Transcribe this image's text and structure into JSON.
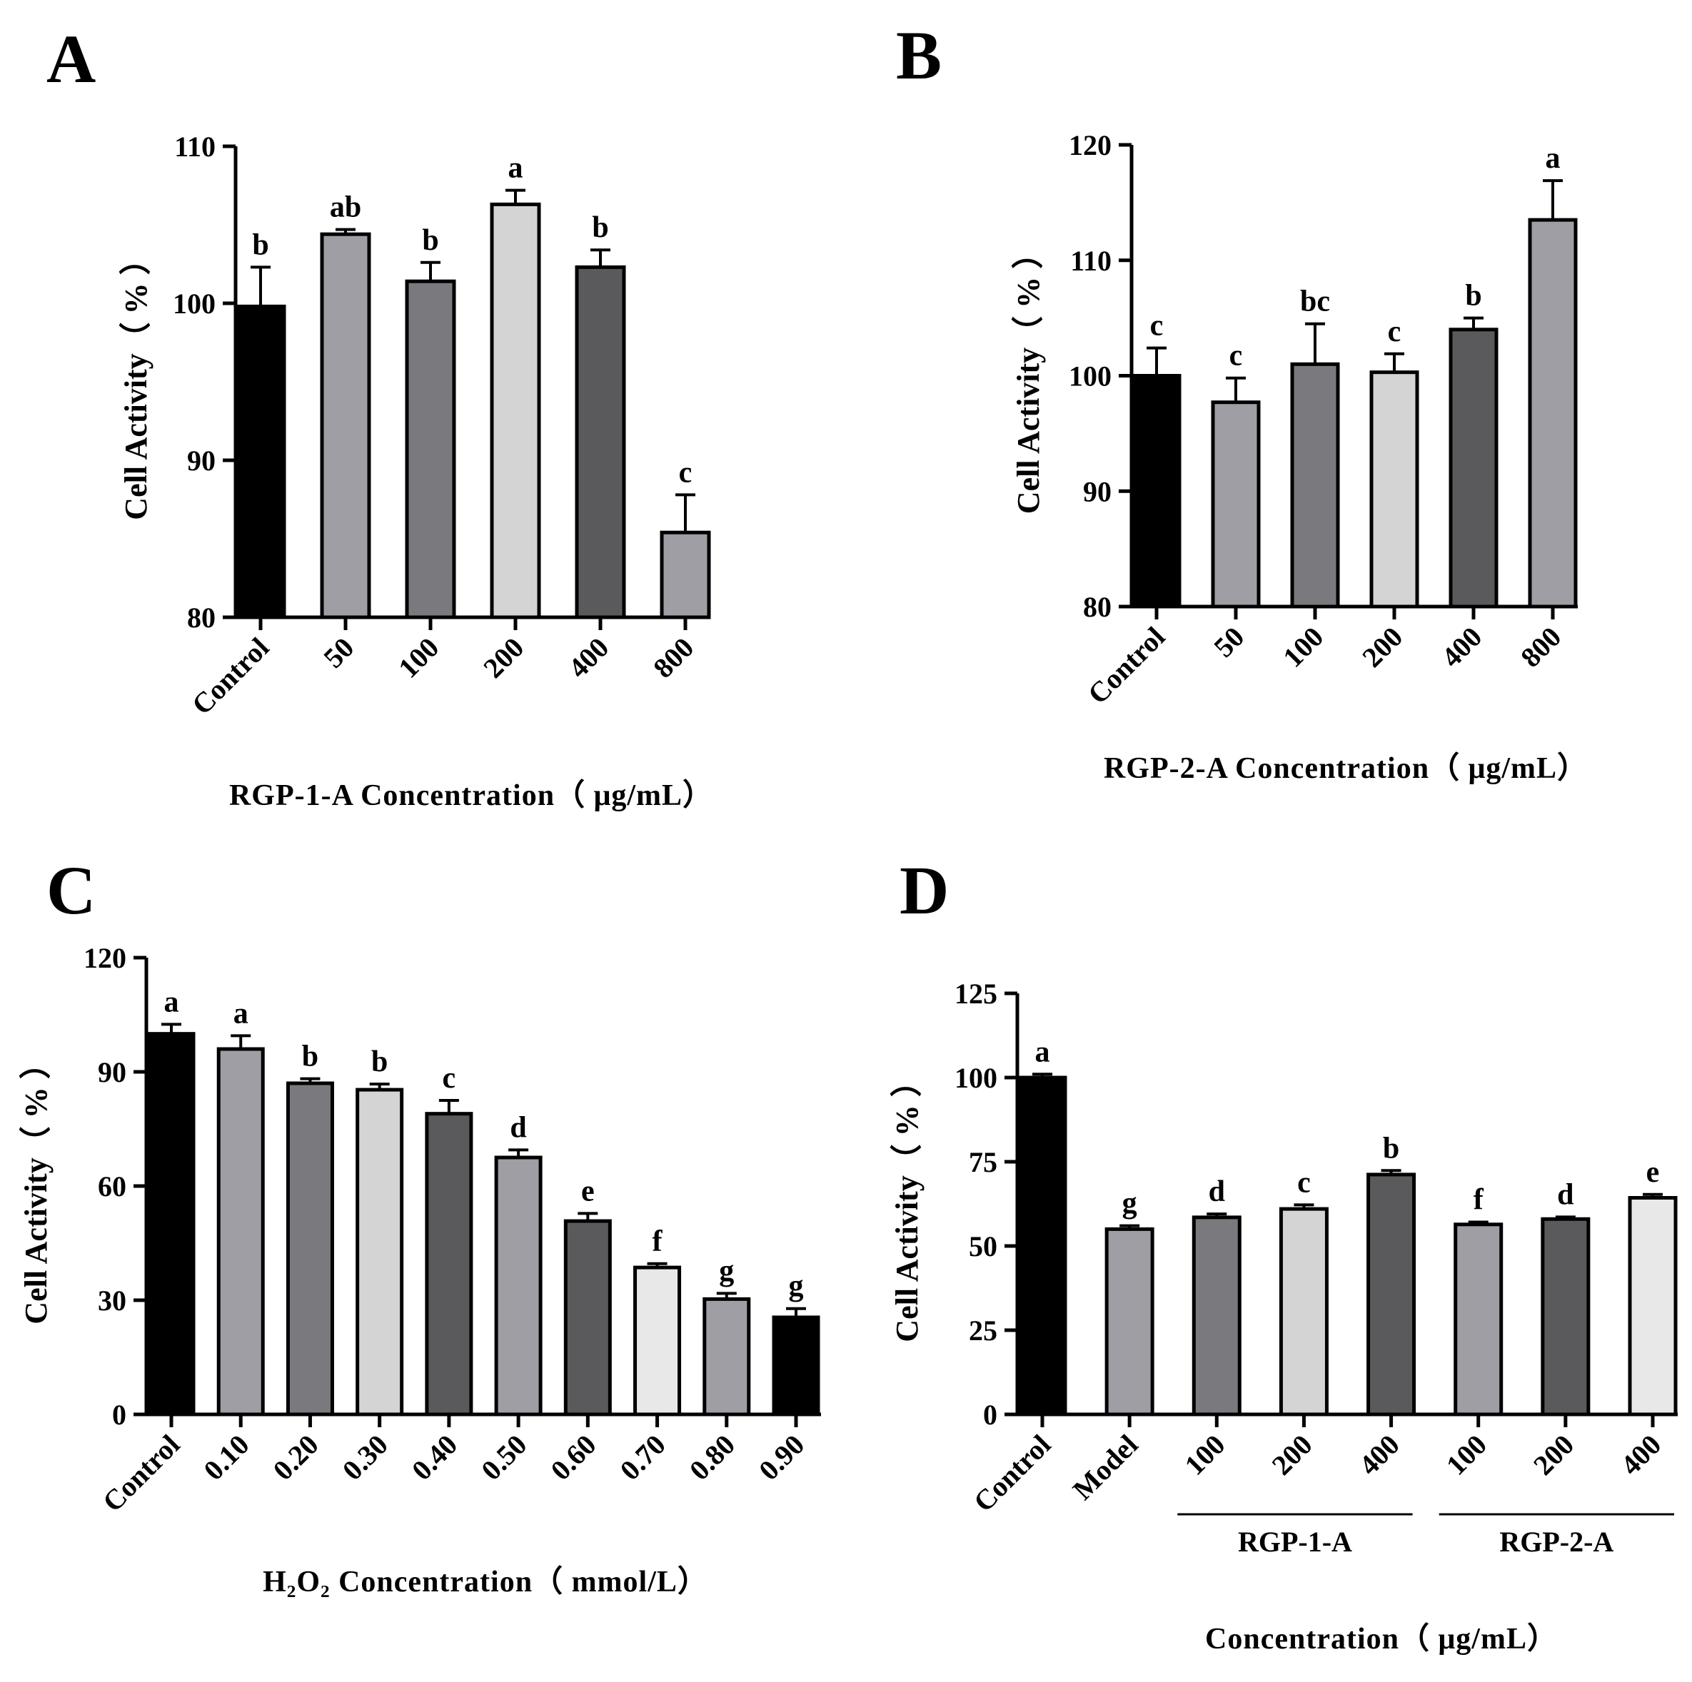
{
  "chart_data": [
    {
      "panel": "A",
      "type": "bar",
      "title": "",
      "xlabel": "RGP-1-A Concentration（ μg/mL）",
      "ylabel": "Cell Activity（ % ）",
      "ylim": [
        80,
        110
      ],
      "yticks": [
        80,
        90,
        100,
        110
      ],
      "categories": [
        "Control",
        "50",
        "100",
        "200",
        "400",
        "800"
      ],
      "values": [
        99.8,
        104.4,
        101.4,
        106.3,
        102.3,
        85.4
      ],
      "errors": [
        2.5,
        0.3,
        1.2,
        0.9,
        1.1,
        2.4
      ],
      "significance": [
        "b",
        "ab",
        "b",
        "a",
        "b",
        "c"
      ],
      "colors": [
        "#000000",
        "#9e9ea4",
        "#7a7a7e",
        "#d4d4d4",
        "#5a5a5c",
        "#9e9ea4"
      ]
    },
    {
      "panel": "B",
      "type": "bar",
      "title": "",
      "xlabel": "RGP-2-A Concentration（ μg/mL）",
      "ylabel": "Cell Activity（ % ）",
      "ylim": [
        80,
        120
      ],
      "yticks": [
        80,
        90,
        100,
        110,
        120
      ],
      "categories": [
        "Control",
        "50",
        "100",
        "200",
        "400",
        "800"
      ],
      "values": [
        100.0,
        97.7,
        101.0,
        100.3,
        104.0,
        113.5
      ],
      "errors": [
        2.4,
        2.1,
        3.5,
        1.6,
        1.0,
        3.4
      ],
      "significance": [
        "c",
        "c",
        "bc",
        "c",
        "b",
        "a"
      ],
      "colors": [
        "#000000",
        "#9e9ea4",
        "#7a7a7e",
        "#d4d4d4",
        "#5a5a5c",
        "#9e9ea4"
      ]
    },
    {
      "panel": "C",
      "type": "bar",
      "title": "",
      "xlabel": "H₂O₂ Concentration（ mmol/L）",
      "ylabel": "Cell Activity（ % ）",
      "ylim": [
        0,
        120
      ],
      "yticks": [
        0,
        30,
        60,
        90,
        120
      ],
      "categories": [
        "Control",
        "0.10",
        "0.20",
        "0.30",
        "0.40",
        "0.50",
        "0.60",
        "0.70",
        "0.80",
        "0.90"
      ],
      "values": [
        100.0,
        96.0,
        87.0,
        85.3,
        79.0,
        67.5,
        50.8,
        38.6,
        30.3,
        25.5
      ],
      "errors": [
        2.5,
        3.5,
        1.2,
        1.5,
        3.5,
        2.0,
        2.0,
        1.0,
        1.5,
        2.3
      ],
      "significance": [
        "a",
        "a",
        "b",
        "b",
        "c",
        "d",
        "e",
        "f",
        "g",
        "g"
      ],
      "colors": [
        "#000000",
        "#9e9ea4",
        "#7a7a7e",
        "#d4d4d4",
        "#5a5a5c",
        "#9e9ea4",
        "#5a5a5c",
        "#e8e8e8",
        "#9e9ea4",
        "#000000"
      ]
    },
    {
      "panel": "D",
      "type": "bar",
      "title": "",
      "xlabel": "Concentration（ μg/mL）",
      "ylabel": "Cell Activity（ % ）",
      "ylim": [
        0,
        125
      ],
      "yticks": [
        0,
        25,
        50,
        75,
        100,
        125
      ],
      "categories": [
        "Control",
        "Model",
        "100",
        "200",
        "400",
        "100",
        "200",
        "400"
      ],
      "values": [
        100.0,
        55.0,
        58.5,
        61.0,
        71.2,
        56.4,
        58.0,
        64.3
      ],
      "errors": [
        1.0,
        1.0,
        1.0,
        1.2,
        1.2,
        0.7,
        0.6,
        1.0
      ],
      "significance": [
        "a",
        "g",
        "d",
        "c",
        "b",
        "f",
        "d",
        "e"
      ],
      "colors": [
        "#000000",
        "#9e9ea4",
        "#7a7a7e",
        "#d4d4d4",
        "#5a5a5c",
        "#9e9ea4",
        "#5a5a5c",
        "#e8e8e8"
      ],
      "groups": [
        {
          "label": "RGP-1-A",
          "start": 2,
          "end": 4
        },
        {
          "label": "RGP-2-A",
          "start": 5,
          "end": 7
        }
      ]
    }
  ]
}
